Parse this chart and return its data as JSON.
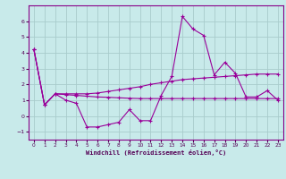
{
  "xlabel": "Windchill (Refroidissement éolien,°C)",
  "background_color": "#c8eaea",
  "grid_color": "#a8cccc",
  "line_color": "#990099",
  "x_data": [
    0,
    1,
    2,
    3,
    4,
    5,
    6,
    7,
    8,
    9,
    10,
    11,
    12,
    13,
    14,
    15,
    16,
    17,
    18,
    19,
    20,
    21,
    22,
    23
  ],
  "y_raw": [
    4.2,
    0.7,
    1.4,
    1.0,
    0.8,
    -0.7,
    -0.7,
    -0.55,
    -0.4,
    0.4,
    -0.3,
    -0.3,
    1.3,
    2.5,
    6.3,
    5.5,
    5.1,
    2.6,
    3.4,
    2.7,
    1.2,
    1.2,
    1.6,
    1.0
  ],
  "y_upper": [
    4.2,
    0.7,
    1.4,
    1.4,
    1.4,
    1.4,
    1.45,
    1.55,
    1.65,
    1.75,
    1.85,
    2.0,
    2.1,
    2.2,
    2.3,
    2.35,
    2.4,
    2.45,
    2.5,
    2.55,
    2.6,
    2.65,
    2.65,
    2.65
  ],
  "y_lower": [
    4.2,
    0.7,
    1.4,
    1.35,
    1.3,
    1.25,
    1.2,
    1.18,
    1.15,
    1.12,
    1.1,
    1.1,
    1.1,
    1.1,
    1.1,
    1.1,
    1.1,
    1.1,
    1.1,
    1.1,
    1.1,
    1.1,
    1.1,
    1.1
  ],
  "ylim": [
    -1.5,
    7.0
  ],
  "xlim": [
    -0.5,
    23.5
  ],
  "yticks": [
    -1,
    0,
    1,
    2,
    3,
    4,
    5,
    6
  ],
  "xticks": [
    0,
    1,
    2,
    3,
    4,
    5,
    6,
    7,
    8,
    9,
    10,
    11,
    12,
    13,
    14,
    15,
    16,
    17,
    18,
    19,
    20,
    21,
    22,
    23
  ]
}
